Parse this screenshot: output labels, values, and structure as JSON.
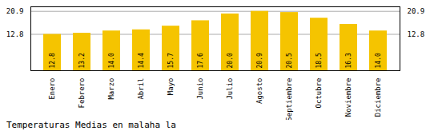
{
  "chart_data": {
    "type": "bar",
    "title": "Temperaturas Medias en malaha la",
    "categories": [
      "Enero",
      "Febrero",
      "Marzo",
      "Abril",
      "Mayo",
      "Junio",
      "Julio",
      "Agosto",
      "Septiembre",
      "Octubre",
      "Noviembre",
      "Diciembre"
    ],
    "values": [
      12.8,
      13.2,
      14.0,
      14.4,
      15.7,
      17.6,
      20.0,
      20.9,
      20.5,
      18.5,
      16.3,
      14.0
    ],
    "value_labels": [
      "12.8",
      "13.2",
      "14.0",
      "14.4",
      "15.7",
      "17.6",
      "20.0",
      "20.9",
      "20.5",
      "18.5",
      "16.3",
      "14.0"
    ],
    "color": "#F5C400",
    "ylim": [
      0.0,
      22.5
    ],
    "yticks": [
      12.8,
      20.9
    ],
    "grid": true,
    "data_labels": true
  }
}
